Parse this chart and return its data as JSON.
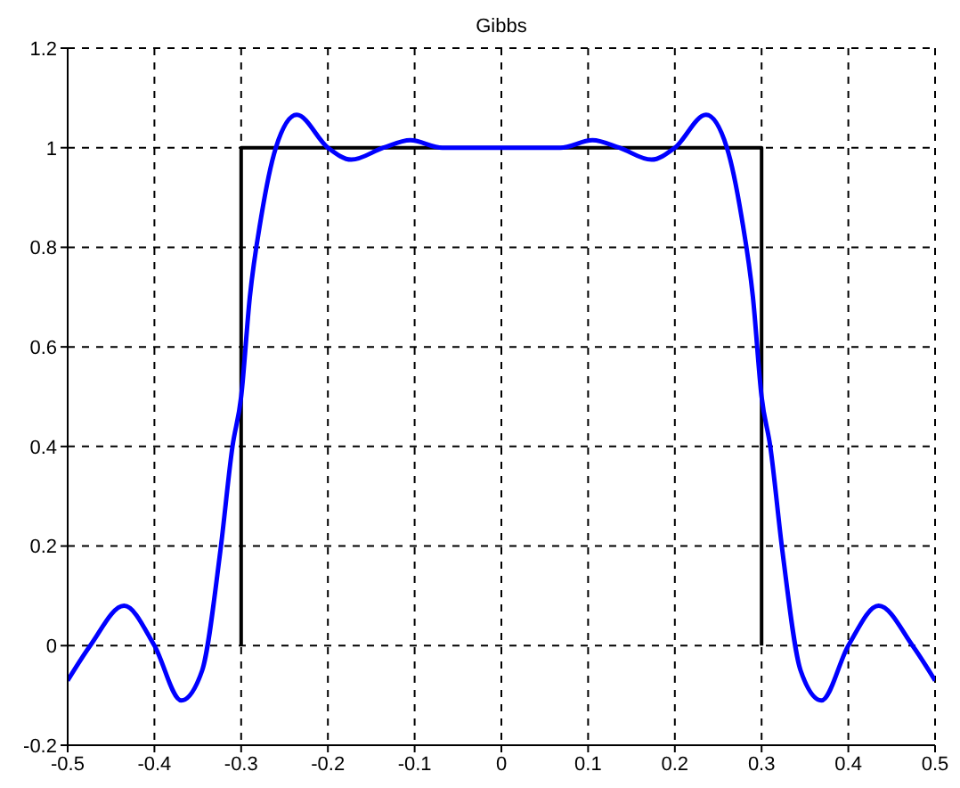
{
  "chart_data": {
    "type": "line",
    "title": "Gibbs",
    "xlim": [
      -0.5,
      0.5
    ],
    "ylim": [
      -0.2,
      1.2
    ],
    "xticks": [
      -0.5,
      -0.4,
      -0.3,
      -0.2,
      -0.1,
      0,
      0.1,
      0.2,
      0.3,
      0.4,
      0.5
    ],
    "yticks": [
      -0.2,
      0,
      0.2,
      0.4,
      0.6,
      0.8,
      1,
      1.2
    ],
    "grid": true,
    "series": [
      {
        "color": "#000000",
        "x": [
          -0.3,
          -0.3,
          0.3,
          0.3
        ],
        "values": [
          0,
          1,
          1,
          0
        ]
      },
      {
        "color": "#0000ff",
        "x": [
          -0.5,
          -0.474,
          -0.435,
          -0.4,
          -0.369,
          -0.345,
          -0.324,
          -0.31,
          -0.3,
          -0.29,
          -0.277,
          -0.26,
          -0.236,
          -0.2,
          -0.173,
          -0.136,
          -0.105,
          -0.068,
          -0.03,
          0,
          0.03,
          0.068,
          0.105,
          0.136,
          0.173,
          0.2,
          0.236,
          0.26,
          0.277,
          0.29,
          0.3,
          0.31,
          0.324,
          0.345,
          0.369,
          0.4,
          0.435,
          0.474,
          0.5
        ],
        "values": [
          -0.07,
          0,
          0.08,
          0,
          -0.11,
          -0.05,
          0.19,
          0.4,
          0.5,
          0.7,
          0.86,
          1,
          1.066,
          1,
          0.976,
          1,
          1.015,
          1,
          1,
          1,
          1,
          1,
          1.015,
          1,
          0.976,
          1,
          1.066,
          1,
          0.86,
          0.7,
          0.5,
          0.4,
          0.19,
          -0.05,
          -0.11,
          0,
          0.08,
          0,
          -0.07
        ]
      }
    ]
  }
}
